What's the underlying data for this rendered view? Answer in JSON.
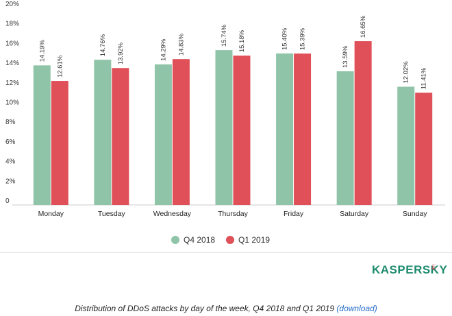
{
  "chart_data": {
    "type": "bar",
    "categories": [
      "Monday",
      "Tuesday",
      "Wednesday",
      "Thursday",
      "Friday",
      "Saturday",
      "Sunday"
    ],
    "series": [
      {
        "name": "Q4 2018",
        "color": "#8fc4a8",
        "values": [
          14.19,
          14.76,
          14.29,
          15.74,
          15.4,
          13.59,
          12.02
        ],
        "labels": [
          "14.19%",
          "14.76%",
          "14.29%",
          "15.74%",
          "15.40%",
          "13.59%",
          "12.02%"
        ]
      },
      {
        "name": "Q1 2019",
        "color": "#e05058",
        "values": [
          12.61,
          13.92,
          14.83,
          15.18,
          15.39,
          16.65,
          11.41
        ],
        "labels": [
          "12.61%",
          "13.92%",
          "14.83%",
          "15.18%",
          "15.39%",
          "16.65%",
          "11.41%"
        ]
      }
    ],
    "yticks": [
      {
        "value": 0,
        "label": "0"
      },
      {
        "value": 2,
        "label": "2%"
      },
      {
        "value": 4,
        "label": "4%"
      },
      {
        "value": 6,
        "label": "6%"
      },
      {
        "value": 8,
        "label": "8%"
      },
      {
        "value": 10,
        "label": "10%"
      },
      {
        "value": 12,
        "label": "12%"
      },
      {
        "value": 14,
        "label": "14%"
      },
      {
        "value": 16,
        "label": "16%"
      },
      {
        "value": 18,
        "label": "18%"
      },
      {
        "value": 20,
        "label": "20%"
      }
    ],
    "ylim": [
      0,
      20
    ],
    "grid": false,
    "legend": "bottom-center"
  },
  "logo": {
    "text": "KASPERSKY",
    "sub": "lab"
  },
  "caption": {
    "text": "Distribution of DDoS attacks by day of the week, Q4 2018 and Q1 2019",
    "link": "(download)"
  }
}
